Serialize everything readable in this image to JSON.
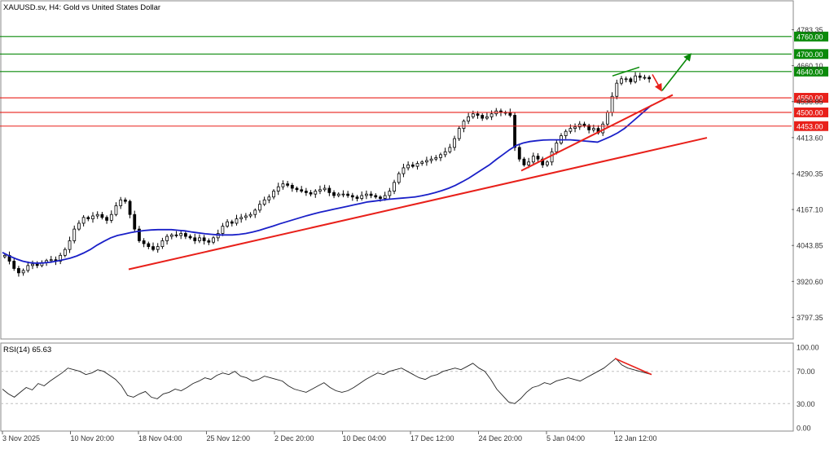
{
  "header": {
    "title": "XAUUSD.sv, H4:  Gold vs United States Dollar"
  },
  "rsi_label": "RSI(14) 65.63",
  "colors": {
    "candle": "#000000",
    "ma": "#1a20c8",
    "support_line": "#e8201a",
    "resistance_line": "#0a8a0a",
    "label_text": "#ffffff",
    "grid": "#c0c0c0",
    "axis_text": "#333333"
  },
  "chart_data": [
    {
      "type": "candlestick",
      "title": "XAUUSD.sv, H4:  Gold vs United States Dollar",
      "xlabel": "",
      "ylabel": "",
      "ylim": [
        3740,
        4835
      ],
      "y_ticks": [
        "4783.35",
        "4660.10",
        "4536.85",
        "4413.60",
        "4290.35",
        "4167.10",
        "4043.85",
        "3920.60",
        "3797.35"
      ],
      "x_ticks": [
        "3 Nov 2025",
        "10 Nov 20:00",
        "18 Nov 04:00",
        "25 Nov 12:00",
        "2 Dec 20:00",
        "10 Dec 04:00",
        "17 Dec 12:00",
        "24 Dec 20:00",
        "5 Jan 04:00",
        "12 Jan 12:00"
      ],
      "price_close_path": [
        4010,
        3990,
        3965,
        3950,
        3958,
        3975,
        3980,
        3975,
        3985,
        3992,
        3995,
        3990,
        4010,
        4030,
        4060,
        4100,
        4120,
        4140,
        4135,
        4145,
        4150,
        4140,
        4130,
        4150,
        4180,
        4200,
        4195,
        4150,
        4100,
        4060,
        4050,
        4040,
        4030,
        4040,
        4060,
        4075,
        4080,
        4078,
        4085,
        4075,
        4070,
        4060,
        4070,
        4060,
        4055,
        4070,
        4085,
        4110,
        4125,
        4120,
        4135,
        4140,
        4145,
        4150,
        4165,
        4185,
        4200,
        4210,
        4230,
        4245,
        4255,
        4250,
        4240,
        4235,
        4230,
        4225,
        4220,
        4230,
        4235,
        4240,
        4225,
        4215,
        4220,
        4220,
        4215,
        4210,
        4205,
        4215,
        4220,
        4215,
        4210,
        4205,
        4215,
        4230,
        4260,
        4290,
        4310,
        4320,
        4315,
        4325,
        4330,
        4335,
        4340,
        4345,
        4355,
        4365,
        4380,
        4410,
        4445,
        4470,
        4485,
        4495,
        4490,
        4480,
        4485,
        4495,
        4505,
        4500,
        4500,
        4490,
        4380,
        4340,
        4320,
        4330,
        4350,
        4340,
        4320,
        4330,
        4365,
        4395,
        4420,
        4435,
        4445,
        4450,
        4460,
        4455,
        4440,
        4445,
        4430,
        4460,
        4500,
        4555,
        4600,
        4615,
        4615,
        4605,
        4625,
        4620,
        4620,
        4615
      ],
      "ma_path": [
        4020,
        4008,
        3998,
        3990,
        3985,
        3983,
        3984,
        3986,
        3990,
        3995,
        4000,
        4008,
        4018,
        4030,
        4045,
        4058,
        4070,
        4078,
        4083,
        4088,
        4092,
        4095,
        4097,
        4098,
        4098,
        4098,
        4096,
        4094,
        4090,
        4087,
        4084,
        4082,
        4080,
        4080,
        4080,
        4082,
        4085,
        4090,
        4096,
        4103,
        4110,
        4118,
        4125,
        4132,
        4139,
        4146,
        4152,
        4158,
        4163,
        4168,
        4173,
        4178,
        4183,
        4188,
        4193,
        4196,
        4199,
        4202,
        4204,
        4206,
        4208,
        4210,
        4214,
        4219,
        4225,
        4232,
        4240,
        4250,
        4262,
        4275,
        4290,
        4305,
        4320,
        4338,
        4355,
        4372,
        4387,
        4395,
        4400,
        4403,
        4405,
        4406,
        4406,
        4406,
        4406,
        4404,
        4402,
        4400,
        4398,
        4408,
        4418,
        4430,
        4445,
        4465,
        4485,
        4505,
        4525
      ],
      "lines": [
        {
          "kind": "resistance",
          "level": 4760.0,
          "label": "4760.00"
        },
        {
          "kind": "resistance",
          "level": 4700.0,
          "label": "4700.00"
        },
        {
          "kind": "resistance",
          "level": 4640.0,
          "label": "4640.00"
        },
        {
          "kind": "support",
          "level": 4550.0,
          "label": "4550.00"
        },
        {
          "kind": "support",
          "level": 4500.0,
          "label": "4500.00"
        },
        {
          "kind": "support",
          "level": 4453.0,
          "label": "4453.00"
        }
      ],
      "trendlines": [
        {
          "name": "",
          "from": [
            "18 Nov",
            3962
          ],
          "to": [
            "13 Jan",
            4410
          ]
        },
        {
          "name": "",
          "from": [
            "29 Dec",
            4300
          ],
          "to": [
            "13 Jan",
            4560
          ]
        }
      ],
      "projection": {
        "down_to": 4575,
        "up_to": 4700
      }
    },
    {
      "type": "line",
      "title": "RSI(14) 65.63",
      "ylim": [
        0,
        100
      ],
      "y_ticks": [
        "100.00",
        "70.00",
        "30.00",
        "0.00"
      ],
      "levels": [
        70,
        30
      ],
      "values": [
        48,
        42,
        38,
        44,
        50,
        47,
        55,
        52,
        58,
        63,
        68,
        74,
        72,
        70,
        66,
        68,
        72,
        70,
        65,
        60,
        52,
        40,
        38,
        42,
        45,
        38,
        36,
        42,
        44,
        48,
        46,
        50,
        55,
        58,
        62,
        60,
        65,
        68,
        66,
        70,
        64,
        62,
        58,
        60,
        64,
        62,
        60,
        58,
        52,
        48,
        46,
        44,
        48,
        52,
        56,
        50,
        46,
        44,
        46,
        50,
        55,
        60,
        64,
        68,
        66,
        70,
        72,
        74,
        70,
        66,
        62,
        60,
        64,
        66,
        70,
        72,
        74,
        72,
        76,
        80,
        74,
        70,
        60,
        48,
        40,
        32,
        30,
        36,
        44,
        50,
        52,
        56,
        54,
        58,
        60,
        62,
        60,
        58,
        62,
        66,
        70,
        74,
        80,
        86,
        78,
        74,
        72,
        70,
        68,
        66
      ]
    }
  ]
}
